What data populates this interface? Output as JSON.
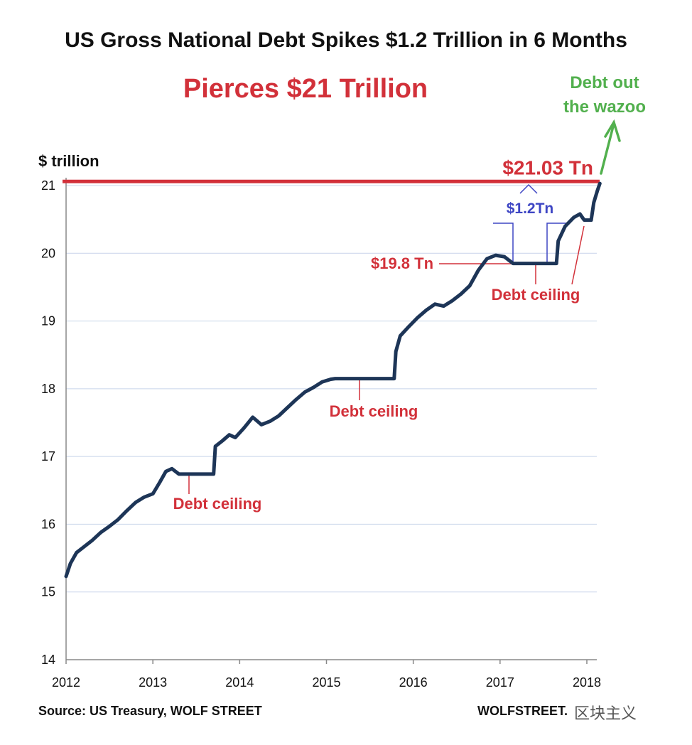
{
  "chart_data": {
    "type": "line",
    "title": "US Gross National Debt Spikes $1.2 Trillion in 6 Months",
    "subtitle": "Pierces $21 Trillion",
    "ylabel": "$ trillion",
    "xlabel": "",
    "xlim": [
      2012,
      2018.15
    ],
    "ylim": [
      14,
      21
    ],
    "x_ticks": [
      2012,
      2013,
      2014,
      2015,
      2016,
      2017,
      2018
    ],
    "y_ticks": [
      14,
      15,
      16,
      17,
      18,
      19,
      20,
      21
    ],
    "grid": true,
    "series": [
      {
        "color": "#1d3557",
        "points": [
          [
            2012.0,
            15.23
          ],
          [
            2012.05,
            15.42
          ],
          [
            2012.12,
            15.58
          ],
          [
            2012.2,
            15.66
          ],
          [
            2012.3,
            15.76
          ],
          [
            2012.4,
            15.88
          ],
          [
            2012.5,
            15.97
          ],
          [
            2012.6,
            16.07
          ],
          [
            2012.7,
            16.2
          ],
          [
            2012.8,
            16.32
          ],
          [
            2012.9,
            16.4
          ],
          [
            2013.0,
            16.45
          ],
          [
            2013.08,
            16.62
          ],
          [
            2013.15,
            16.78
          ],
          [
            2013.22,
            16.82
          ],
          [
            2013.3,
            16.74
          ],
          [
            2013.7,
            16.74
          ],
          [
            2013.72,
            17.15
          ],
          [
            2013.8,
            17.23
          ],
          [
            2013.88,
            17.32
          ],
          [
            2013.95,
            17.28
          ],
          [
            2014.05,
            17.42
          ],
          [
            2014.15,
            17.58
          ],
          [
            2014.25,
            17.47
          ],
          [
            2014.35,
            17.52
          ],
          [
            2014.45,
            17.6
          ],
          [
            2014.55,
            17.72
          ],
          [
            2014.65,
            17.84
          ],
          [
            2014.75,
            17.95
          ],
          [
            2014.85,
            18.02
          ],
          [
            2014.95,
            18.1
          ],
          [
            2015.05,
            18.14
          ],
          [
            2015.1,
            18.15
          ],
          [
            2015.78,
            18.15
          ],
          [
            2015.8,
            18.55
          ],
          [
            2015.85,
            18.78
          ],
          [
            2015.95,
            18.92
          ],
          [
            2016.05,
            19.05
          ],
          [
            2016.15,
            19.16
          ],
          [
            2016.25,
            19.25
          ],
          [
            2016.35,
            19.22
          ],
          [
            2016.45,
            19.3
          ],
          [
            2016.55,
            19.4
          ],
          [
            2016.65,
            19.52
          ],
          [
            2016.75,
            19.75
          ],
          [
            2016.85,
            19.92
          ],
          [
            2016.95,
            19.97
          ],
          [
            2017.05,
            19.95
          ],
          [
            2017.15,
            19.85
          ],
          [
            2017.65,
            19.85
          ],
          [
            2017.67,
            20.18
          ],
          [
            2017.75,
            20.4
          ],
          [
            2017.85,
            20.53
          ],
          [
            2017.92,
            20.58
          ],
          [
            2017.97,
            20.49
          ],
          [
            2018.05,
            20.49
          ],
          [
            2018.08,
            20.75
          ],
          [
            2018.12,
            20.92
          ],
          [
            2018.15,
            21.03
          ]
        ]
      }
    ],
    "reference_line": {
      "y": 21.06,
      "label": "$21.03 Tn",
      "color": "#d2313a"
    },
    "annotations": [
      {
        "text": "Debt ceiling",
        "x": 2013.38,
        "y": 16.74,
        "color": "#d2313a"
      },
      {
        "text": "Debt ceiling",
        "x": 2015.4,
        "y": 18.15,
        "color": "#d2313a"
      },
      {
        "text": "Debt ceiling",
        "x": 2017.45,
        "y": 19.85,
        "color": "#d2313a"
      },
      {
        "text": "$19.8 Tn",
        "x": 2016.85,
        "y": 19.85,
        "color": "#d2313a"
      },
      {
        "text": "$1.2Tn",
        "x": 2017.35,
        "y": 20.55,
        "color": "#3e46c4"
      }
    ],
    "colors": {
      "line": "#1d3557",
      "accent_red": "#d2313a",
      "accent_green": "#52b04e",
      "bracket_blue": "#3e46c4",
      "grid": "#c8d4ea"
    }
  },
  "callout": {
    "text_line1": "Debt out",
    "text_line2": "the wazoo"
  },
  "footer": {
    "source": "Source: US Treasury, WOLF STREET",
    "brand": "WOLFSTREET.",
    "watermark": "区块主义"
  }
}
